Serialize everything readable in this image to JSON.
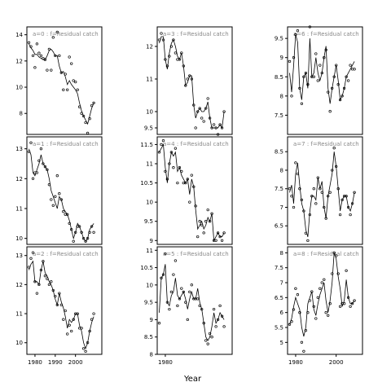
{
  "chart_data": {
    "type": "scatter",
    "xlabel": "Year",
    "title_suffix": " : f=Residual catch",
    "panels": [
      {
        "label": "a=0",
        "yticks": [
          8,
          10,
          12,
          14
        ],
        "ylim": [
          6.4,
          14.6
        ],
        "xticks": [],
        "xlim": [
          1976,
          2013
        ],
        "x": [
          1977,
          1978,
          1979,
          1980,
          1981,
          1982,
          1983,
          1984,
          1985,
          1986,
          1987,
          1988,
          1989,
          1990,
          1991,
          1992,
          1993,
          1994,
          1995,
          1996,
          1997,
          1998,
          1999,
          2000,
          2001,
          2002,
          2003,
          2004,
          2005,
          2006,
          2007,
          2008,
          2009
        ],
        "fit": [
          13.3,
          13.0,
          12.8,
          12.5,
          12.5,
          12.3,
          12.2,
          12.1,
          12.1,
          12.4,
          12.8,
          12.9,
          12.7,
          12.4,
          12.4,
          11.6,
          11.1,
          11.2,
          10.8,
          10.2,
          10.5,
          10.2,
          10.0,
          9.8,
          9.5,
          8.8,
          8.2,
          7.8,
          7.5,
          7.2,
          7.8,
          8.4,
          8.8
        ],
        "obs": [
          13.4,
          13.1,
          12.4,
          11.5,
          13.3,
          12.6,
          12.4,
          12.2,
          12.1,
          11.3,
          12.9,
          11.3,
          13.8,
          12.4,
          14.2,
          12.4,
          11.1,
          9.8,
          11.0,
          9.8,
          12.3,
          11.8,
          10.5,
          10.4,
          9.8,
          8.5,
          8.0,
          7.8,
          7.3,
          6.5,
          7.6,
          8.6,
          8.8
        ]
      },
      {
        "label": "a=3",
        "yticks": [
          9.5,
          10.0,
          11.0,
          12.0
        ],
        "ylim": [
          9.3,
          12.6
        ],
        "xticks": [],
        "xlim": [
          1976,
          2013
        ],
        "x": [
          1977,
          1978,
          1979,
          1980,
          1981,
          1982,
          1983,
          1984,
          1985,
          1986,
          1987,
          1988,
          1989,
          1990,
          1991,
          1992,
          1993,
          1994,
          1995,
          1996,
          1997,
          1998,
          1999,
          2000,
          2001,
          2002,
          2003,
          2004,
          2005,
          2006,
          2007,
          2008,
          2009
        ],
        "fit": [
          12.1,
          12.3,
          12.3,
          11.6,
          11.3,
          11.8,
          12.1,
          12.2,
          12.0,
          11.7,
          11.6,
          11.8,
          11.4,
          10.8,
          10.9,
          11.1,
          11.1,
          10.2,
          9.8,
          10.0,
          10.1,
          10.0,
          10.0,
          10.1,
          10.3,
          9.8,
          9.5,
          9.5,
          9.5,
          9.5,
          9.6,
          9.5,
          10.0
        ],
        "obs": [
          12.2,
          12.4,
          12.2,
          11.6,
          11.4,
          11.7,
          12.0,
          12.2,
          11.8,
          11.6,
          11.6,
          11.8,
          11.4,
          10.8,
          11.0,
          11.1,
          11.0,
          10.2,
          9.5,
          10.0,
          10.1,
          9.8,
          9.7,
          10.1,
          10.4,
          9.8,
          9.5,
          9.6,
          9.5,
          9.3,
          9.6,
          9.5,
          10.0
        ]
      },
      {
        "label": "a=6",
        "yticks": [
          7.5,
          8.0,
          8.5,
          9.0,
          9.5
        ],
        "ylim": [
          7.0,
          9.8
        ],
        "xticks": [],
        "xlim": [
          1976,
          2013
        ],
        "x": [
          1977,
          1978,
          1979,
          1980,
          1981,
          1982,
          1983,
          1984,
          1985,
          1986,
          1987,
          1988,
          1989,
          1990,
          1991,
          1992,
          1993,
          1994,
          1995,
          1996,
          1997,
          1998,
          1999,
          2000,
          2001,
          2002,
          2003,
          2004,
          2005,
          2006,
          2007,
          2008,
          2009
        ],
        "fit": [
          8.6,
          8.1,
          8.8,
          9.6,
          9.4,
          8.2,
          7.9,
          8.5,
          8.6,
          8.2,
          9.5,
          8.5,
          8.6,
          9.0,
          8.6,
          8.4,
          8.6,
          9.0,
          9.3,
          8.2,
          7.8,
          8.2,
          8.5,
          8.8,
          8.4,
          7.9,
          8.0,
          8.2,
          8.5,
          8.6,
          8.7,
          8.8,
          8.9
        ],
        "obs": [
          8.9,
          8.0,
          9.0,
          9.6,
          9.7,
          8.2,
          7.8,
          8.5,
          8.6,
          8.3,
          9.8,
          8.5,
          8.5,
          9.1,
          8.4,
          8.8,
          8.6,
          9.0,
          9.2,
          8.1,
          7.6,
          8.2,
          8.5,
          8.8,
          8.3,
          7.9,
          8.0,
          8.2,
          8.5,
          8.4,
          8.8,
          8.7,
          8.7
        ]
      },
      {
        "label": "a=1",
        "yticks": [
          10.0,
          11.0,
          12.0,
          13.0
        ],
        "ylim": [
          9.8,
          13.4
        ],
        "xticks": [],
        "xlim": [
          1976,
          2013
        ],
        "x": [
          1977,
          1978,
          1979,
          1980,
          1981,
          1982,
          1983,
          1984,
          1985,
          1986,
          1987,
          1988,
          1989,
          1990,
          1991,
          1992,
          1993,
          1994,
          1995,
          1996,
          1997,
          1998,
          1999,
          2000,
          2001,
          2002,
          2003,
          2004,
          2005,
          2006,
          2007,
          2008,
          2009
        ],
        "fit": [
          13.0,
          12.8,
          12.2,
          12.1,
          12.3,
          12.5,
          12.8,
          12.5,
          12.4,
          12.3,
          12.0,
          11.6,
          11.4,
          11.2,
          11.0,
          11.4,
          11.3,
          11.0,
          10.9,
          10.8,
          10.6,
          10.3,
          10.0,
          10.2,
          10.5,
          10.4,
          10.2,
          10.0,
          9.9,
          10.0,
          10.3,
          10.4,
          10.5
        ],
        "obs": [
          12.9,
          13.2,
          12.0,
          12.2,
          12.2,
          12.6,
          13.0,
          12.5,
          12.4,
          12.3,
          11.8,
          11.3,
          11.1,
          11.4,
          12.1,
          11.5,
          11.3,
          10.9,
          10.8,
          10.8,
          10.5,
          10.3,
          9.9,
          10.2,
          10.4,
          10.4,
          10.2,
          10.0,
          9.9,
          10.0,
          10.2,
          10.4,
          10.2
        ]
      },
      {
        "label": "a=4",
        "yticks": [
          9.0,
          9.5,
          10.0,
          10.5,
          11.0,
          11.5
        ],
        "ylim": [
          8.9,
          11.7
        ],
        "xticks": [],
        "xlim": [
          1976,
          2013
        ],
        "x": [
          1977,
          1978,
          1979,
          1980,
          1981,
          1982,
          1983,
          1984,
          1985,
          1986,
          1987,
          1988,
          1989,
          1990,
          1991,
          1992,
          1993,
          1994,
          1995,
          1996,
          1997,
          1998,
          1999,
          2000,
          2001,
          2002,
          2003,
          2004,
          2005,
          2006,
          2007,
          2008,
          2009
        ],
        "fit": [
          11.3,
          11.4,
          11.5,
          10.9,
          10.5,
          11.0,
          11.3,
          11.2,
          11.3,
          10.8,
          10.9,
          10.7,
          10.6,
          10.5,
          10.6,
          10.2,
          10.6,
          10.4,
          9.8,
          9.3,
          9.4,
          9.5,
          9.3,
          9.4,
          9.6,
          9.5,
          9.7,
          9.0,
          9.1,
          9.2,
          9.1,
          9.1,
          9.2
        ],
        "obs": [
          11.3,
          11.5,
          11.6,
          10.8,
          10.6,
          11.0,
          11.3,
          10.9,
          11.4,
          10.5,
          10.9,
          10.8,
          10.5,
          10.5,
          10.6,
          10.0,
          10.7,
          10.4,
          9.9,
          9.1,
          9.5,
          9.4,
          9.2,
          9.5,
          9.8,
          9.5,
          9.7,
          9.0,
          9.0,
          9.2,
          9.1,
          9.0,
          9.2
        ]
      },
      {
        "label": "a=7",
        "yticks": [
          6.5,
          7.0,
          7.5,
          8.0,
          8.5
        ],
        "ylim": [
          6.0,
          8.9
        ],
        "xticks": [],
        "xlim": [
          1976,
          2013
        ],
        "x": [
          1977,
          1978,
          1979,
          1980,
          1981,
          1982,
          1983,
          1984,
          1985,
          1986,
          1987,
          1988,
          1989,
          1990,
          1991,
          1992,
          1993,
          1994,
          1995,
          1996,
          1997,
          1998,
          1999,
          2000,
          2001,
          2002,
          2003,
          2004,
          2005,
          2006,
          2007,
          2008,
          2009
        ],
        "fit": [
          7.4,
          7.6,
          7.1,
          7.9,
          8.2,
          7.6,
          7.1,
          6.9,
          6.4,
          6.2,
          6.9,
          7.3,
          7.3,
          7.2,
          7.8,
          7.5,
          7.7,
          7.0,
          6.7,
          7.3,
          7.6,
          7.9,
          8.5,
          8.1,
          7.5,
          6.9,
          7.2,
          7.3,
          7.3,
          7.0,
          6.9,
          7.1,
          7.4
        ],
        "obs": [
          7.5,
          7.3,
          7.0,
          8.2,
          7.9,
          7.5,
          7.2,
          6.9,
          6.3,
          6.1,
          6.8,
          7.3,
          7.5,
          7.1,
          7.8,
          7.5,
          7.4,
          7.0,
          6.7,
          7.3,
          7.4,
          8.0,
          8.6,
          8.1,
          7.5,
          6.8,
          7.2,
          7.3,
          7.3,
          7.0,
          6.8,
          7.1,
          7.4
        ]
      },
      {
        "label": "a=2",
        "yticks": [
          10.0,
          11.0,
          12.0,
          13.0
        ],
        "ylim": [
          9.6,
          13.3
        ],
        "xticks": [
          1980,
          1990,
          2000
        ],
        "xlim": [
          1976,
          2013
        ],
        "x": [
          1977,
          1978,
          1979,
          1980,
          1981,
          1982,
          1983,
          1984,
          1985,
          1986,
          1987,
          1988,
          1989,
          1990,
          1991,
          1992,
          1993,
          1994,
          1995,
          1996,
          1997,
          1998,
          1999,
          2000,
          2001,
          2002,
          2003,
          2004,
          2005,
          2006,
          2007,
          2008,
          2009
        ],
        "fit": [
          12.5,
          12.7,
          12.8,
          12.1,
          12.1,
          12.0,
          12.5,
          12.8,
          12.4,
          12.3,
          12.1,
          12.0,
          11.8,
          11.5,
          11.3,
          11.7,
          11.4,
          11.2,
          10.9,
          10.5,
          10.8,
          10.7,
          10.8,
          11.0,
          11.0,
          10.6,
          10.4,
          10.0,
          9.8,
          10.0,
          10.4,
          10.7,
          10.9
        ],
        "obs": [
          12.6,
          12.9,
          13.1,
          12.1,
          11.7,
          12.0,
          12.5,
          12.8,
          12.3,
          12.2,
          12.0,
          12.1,
          11.8,
          11.6,
          11.3,
          11.7,
          11.3,
          10.8,
          11.1,
          10.3,
          10.6,
          10.4,
          10.8,
          11.0,
          11.0,
          10.5,
          10.5,
          9.8,
          9.7,
          10.0,
          10.4,
          10.8,
          11.0
        ]
      },
      {
        "label": "a=5",
        "yticks": [
          8.0,
          8.5,
          9.0,
          9.5,
          10.0,
          10.5,
          11.0
        ],
        "ylim": [
          8.0,
          11.1
        ],
        "xticks": [
          1980
        ],
        "xlim": [
          1976,
          2013
        ],
        "x": [
          1977,
          1978,
          1979,
          1980,
          1981,
          1982,
          1983,
          1984,
          1985,
          1986,
          1987,
          1988,
          1989,
          1990,
          1991,
          1992,
          1993,
          1994,
          1995,
          1996,
          1997,
          1998,
          1999,
          2000,
          2001,
          2002,
          2003,
          2004,
          2005,
          2006,
          2007,
          2008,
          2009
        ],
        "fit": [
          9.2,
          10.2,
          10.3,
          10.6,
          9.5,
          9.4,
          9.7,
          9.8,
          10.2,
          9.7,
          9.6,
          9.7,
          9.8,
          9.6,
          9.3,
          9.6,
          9.8,
          9.6,
          9.6,
          9.9,
          9.5,
          9.3,
          8.9,
          8.5,
          8.4,
          8.5,
          8.8,
          9.2,
          8.9,
          9.0,
          9.2,
          9.1,
          9.0
        ],
        "obs": [
          8.9,
          10.2,
          10.3,
          10.9,
          9.5,
          9.3,
          9.8,
          10.3,
          10.7,
          9.4,
          9.6,
          9.9,
          9.8,
          9.5,
          9.0,
          9.8,
          10.0,
          9.6,
          9.6,
          9.6,
          9.4,
          9.3,
          8.9,
          8.4,
          8.3,
          8.6,
          8.5,
          9.3,
          8.8,
          9.0,
          9.4,
          9.1,
          8.8
        ]
      },
      {
        "label": "a=8",
        "yticks": [
          5.0,
          5.5,
          6.0,
          6.5,
          7.0,
          7.5,
          8.0
        ],
        "ylim": [
          4.6,
          8.2
        ],
        "xticks": [
          1980,
          2000
        ],
        "xlim": [
          1976,
          2013
        ],
        "x": [
          1977,
          1978,
          1979,
          1980,
          1981,
          1982,
          1983,
          1984,
          1985,
          1986,
          1987,
          1988,
          1989,
          1990,
          1991,
          1992,
          1993,
          1994,
          1995,
          1996,
          1997,
          1998,
          1999,
          2000,
          2001,
          2002,
          2003,
          2004,
          2005,
          2006,
          2007,
          2008,
          2009
        ],
        "fit": [
          5.6,
          5.8,
          6.2,
          6.5,
          6.3,
          6.1,
          5.5,
          5.2,
          5.5,
          6.3,
          6.5,
          6.7,
          6.1,
          5.9,
          6.3,
          6.6,
          6.8,
          7.0,
          6.4,
          6.0,
          6.4,
          7.0,
          8.0,
          7.8,
          7.2,
          6.8,
          6.2,
          6.4,
          7.1,
          6.5,
          6.3,
          6.3,
          6.4
        ],
        "obs": [
          5.6,
          5.7,
          6.1,
          6.8,
          6.6,
          6.0,
          5.0,
          4.7,
          5.4,
          6.0,
          6.4,
          6.7,
          6.2,
          5.8,
          6.5,
          6.8,
          7.0,
          7.1,
          6.0,
          5.9,
          6.3,
          7.3,
          8.0,
          7.9,
          7.3,
          6.2,
          6.3,
          6.3,
          7.4,
          6.5,
          6.2,
          6.3,
          6.4
        ]
      }
    ]
  }
}
